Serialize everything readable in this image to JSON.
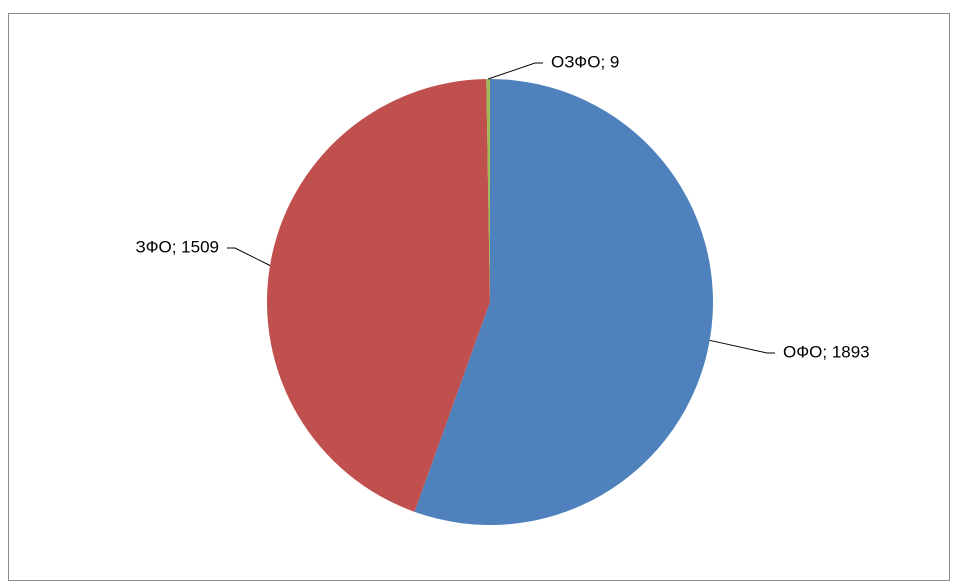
{
  "chart_data": {
    "type": "pie",
    "title": "",
    "slices": [
      {
        "label": "ОФО; 1893",
        "name": "ОФО",
        "value": 1893,
        "color": "#4F81BD"
      },
      {
        "label": "ЗФО; 1509",
        "name": "ЗФО",
        "value": 1509,
        "color": "#C0504D"
      },
      {
        "label": "ОЗФО; 9",
        "name": "ОЗФО",
        "value": 9,
        "color": "#9BBB59"
      }
    ],
    "legend": "none",
    "start": "top, clockwise"
  }
}
